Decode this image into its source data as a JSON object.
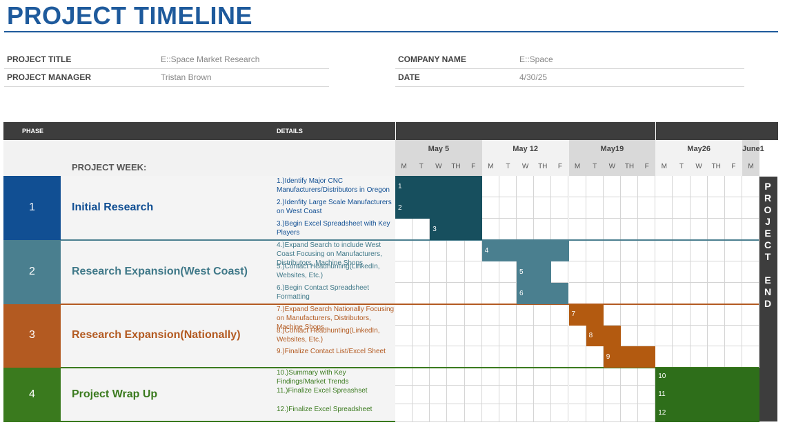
{
  "page": {
    "title": "PROJECT TIMELINE"
  },
  "info": {
    "project_title_label": "PROJECT TITLE",
    "project_title_value": "E::Space Market Research",
    "project_manager_label": "PROJECT MANAGER",
    "project_manager_value": "Tristan Brown",
    "company_name_label": "COMPANY NAME",
    "company_name_value": "E::Space",
    "date_label": "DATE",
    "date_value": "4/30/25"
  },
  "table": {
    "phase_header": "PHASE",
    "details_header": "DETAILS",
    "project_week_label": "PROJECT WEEK:",
    "weeks": [
      "May 5",
      "May 12",
      "May19",
      "May26",
      "June1"
    ],
    "days": [
      "M",
      "T",
      "W",
      "TH",
      "F",
      "M",
      "T",
      "W",
      "TH",
      "F",
      "M",
      "T",
      "W",
      "TH",
      "F",
      "M",
      "T",
      "W",
      "TH",
      "F",
      "M"
    ],
    "project_end": "PROJECT END"
  },
  "phases": [
    {
      "num": "1",
      "name": "Initial Research",
      "color": "#114f93",
      "text_color": "#114f93",
      "bar_color": "#174f5e",
      "tasks": [
        "1.)Identify Major CNC Manufacturers/Distributors in Oregon",
        "2.)Idenfity Large Scale Manufacturers on West Coast",
        "3.)Begin Excel Spreadsheet with Key Players"
      ]
    },
    {
      "num": "2",
      "name": "Research Expansion(West Coast)",
      "color": "#4a7f8f",
      "text_color": "#3f7888",
      "bar_color": "#4a7f8f",
      "tasks": [
        "4.)Expand Search to include West Coast Focusing on Manufacturers, Distributors, Machine Shops",
        "5.)Contact Headhunting(LinkedIn, Websites, Etc.)",
        "6.)Begin Contact Spreadsheet Formatting"
      ]
    },
    {
      "num": "3",
      "name": "Research Expansion(Nationally)",
      "color": "#b35a21",
      "text_color": "#b35a21",
      "bar_color": "#b35a10",
      "tasks": [
        "7.)Expand Search Nationally Focusing on Manufacturers, Distributors, Machine Shops",
        "8.)Contact Headhunting(LinkedIn, Websites, Etc.)",
        "9.)Finalize Contact List/Excel Sheet"
      ]
    },
    {
      "num": "4",
      "name": "Project Wrap Up",
      "color": "#3a7a1e",
      "text_color": "#3a7a1e",
      "bar_color": "#2e6e1a",
      "tasks": [
        "10.)Summary with Key Findings/Market Trends",
        "11.)Finalize Excel Spreashset",
        "12.)Finalize Excel Spreadsheet"
      ]
    }
  ],
  "bars": [
    {
      "label": "1",
      "phase": 0,
      "start_day": 1,
      "end_day": 5
    },
    {
      "label": "2",
      "phase": 0,
      "start_day": 1,
      "end_day": 5
    },
    {
      "label": "3",
      "phase": 0,
      "start_day": 3,
      "end_day": 5
    },
    {
      "label": "4",
      "phase": 1,
      "start_day": 6,
      "end_day": 10
    },
    {
      "label": "5",
      "phase": 1,
      "start_day": 8,
      "end_day": 9
    },
    {
      "label": "6",
      "phase": 1,
      "start_day": 8,
      "end_day": 10
    },
    {
      "label": "7",
      "phase": 2,
      "start_day": 11,
      "end_day": 12
    },
    {
      "label": "8",
      "phase": 2,
      "start_day": 12,
      "end_day": 13
    },
    {
      "label": "9",
      "phase": 2,
      "start_day": 13,
      "end_day": 15
    },
    {
      "label": "10",
      "phase": 3,
      "start_day": 16,
      "end_day": 21
    },
    {
      "label": "11",
      "phase": 3,
      "start_day": 16,
      "end_day": 21
    },
    {
      "label": "12",
      "phase": 3,
      "start_day": 16,
      "end_day": 21
    }
  ]
}
